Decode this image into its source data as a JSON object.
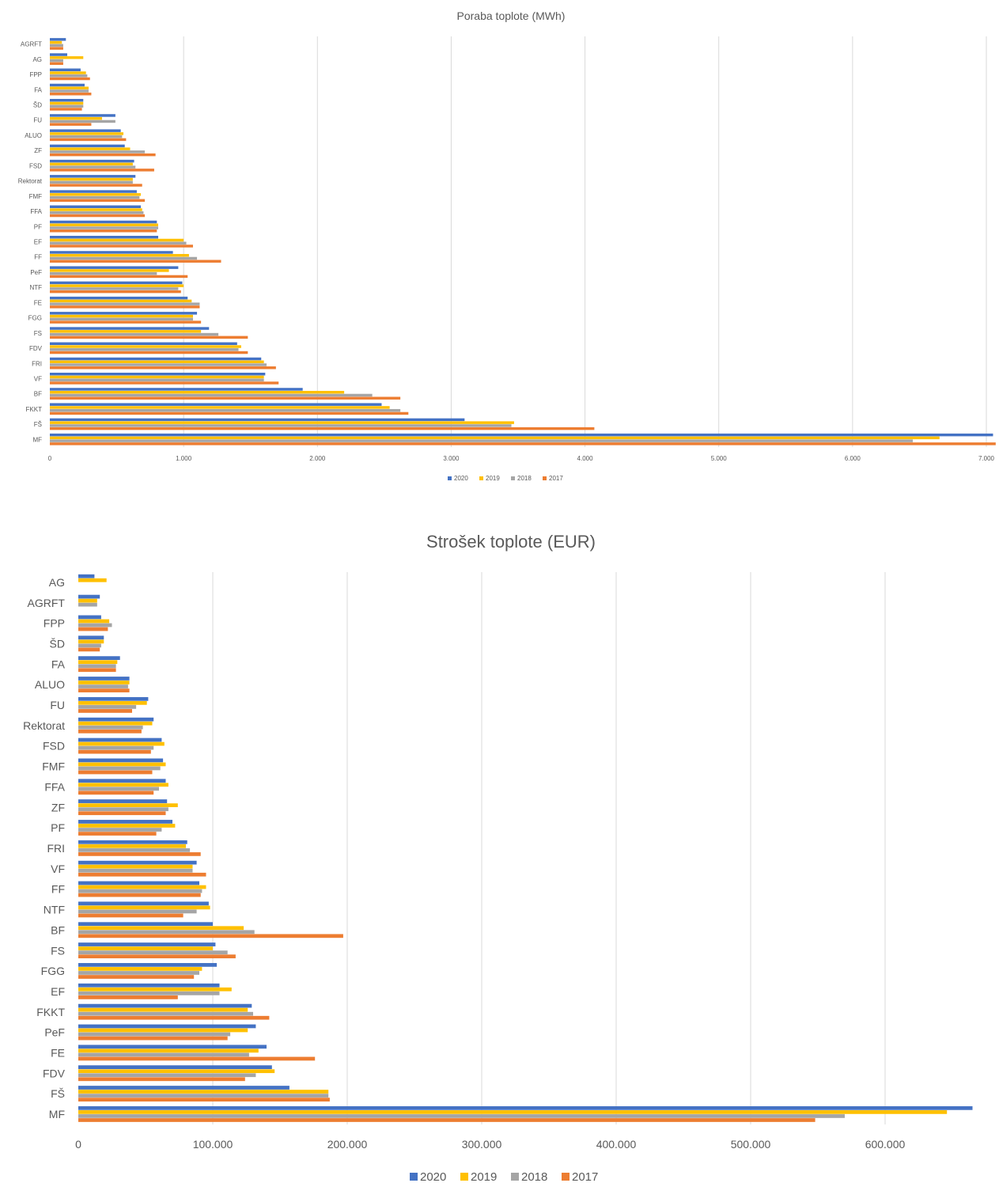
{
  "colors": {
    "2020": "#4472c4",
    "2019": "#ffc000",
    "2018": "#a5a5a5",
    "2017": "#ed7d31",
    "grid": "#d9d9d9"
  },
  "chart_data": [
    {
      "type": "bar",
      "orientation": "horizontal",
      "title": "Poraba toplote (MWh)",
      "categories": [
        "AGRFT",
        "AG",
        "FPP",
        "FA",
        "ŠD",
        "FU",
        "ALUO",
        "ZF",
        "FSD",
        "Rektorat",
        "FMF",
        "FFA",
        "PF",
        "EF",
        "FF",
        "PeF",
        "NTF",
        "FE",
        "FGG",
        "FS",
        "FDV",
        "FRI",
        "VF",
        "BF",
        "FKKT",
        "FŠ",
        "MF"
      ],
      "series": [
        {
          "name": "2020",
          "values": [
            120,
            130,
            230,
            260,
            250,
            490,
            530,
            560,
            630,
            640,
            650,
            680,
            800,
            810,
            920,
            960,
            990,
            1030,
            1100,
            1190,
            1400,
            1580,
            1610,
            1890,
            2480,
            3100,
            7050
          ]
        },
        {
          "name": "2019",
          "values": [
            90,
            250,
            270,
            290,
            250,
            390,
            550,
            600,
            620,
            620,
            680,
            690,
            810,
            1000,
            1040,
            890,
            1000,
            1060,
            1070,
            1130,
            1430,
            1600,
            1600,
            2200,
            2540,
            3470,
            6650
          ]
        },
        {
          "name": "2018",
          "values": [
            100,
            100,
            280,
            290,
            250,
            490,
            540,
            710,
            640,
            620,
            670,
            700,
            810,
            1020,
            1100,
            800,
            960,
            1120,
            1070,
            1260,
            1410,
            1620,
            1600,
            2410,
            2620,
            3450,
            6450
          ]
        },
        {
          "name": "2017",
          "values": [
            100,
            100,
            300,
            310,
            240,
            310,
            570,
            790,
            780,
            690,
            710,
            710,
            800,
            1070,
            1280,
            1030,
            980,
            1120,
            1130,
            1480,
            1480,
            1690,
            1710,
            2620,
            2680,
            4070,
            7070
          ]
        }
      ],
      "xlim": [
        0,
        7000
      ],
      "xticks": [
        "0",
        "1.000",
        "2.000",
        "3.000",
        "4.000",
        "5.000",
        "6.000",
        "7.000"
      ],
      "grid": true,
      "legend": "bottom"
    },
    {
      "type": "bar",
      "orientation": "horizontal",
      "title": "Strošek toplote (EUR)",
      "categories": [
        "AG",
        "AGRFT",
        "FPP",
        "ŠD",
        "FA",
        "ALUO",
        "FU",
        "Rektorat",
        "FSD",
        "FMF",
        "FFA",
        "ZF",
        "PF",
        "FRI",
        "VF",
        "FF",
        "NTF",
        "BF",
        "FS",
        "FGG",
        "EF",
        "FKKT",
        "PeF",
        "FE",
        "FDV",
        "FŠ",
        "MF"
      ],
      "series": [
        {
          "name": "2020",
          "values": [
            12000,
            16000,
            17000,
            19000,
            31000,
            38000,
            52000,
            56000,
            62000,
            63000,
            65000,
            66000,
            70000,
            81000,
            88000,
            90000,
            97000,
            100000,
            102000,
            103000,
            105000,
            129000,
            132000,
            140000,
            144000,
            157000,
            665000
          ]
        },
        {
          "name": "2019",
          "values": [
            21000,
            14000,
            23000,
            19000,
            29000,
            38000,
            51000,
            55000,
            64000,
            65000,
            67000,
            74000,
            72000,
            80000,
            85000,
            95000,
            98000,
            123000,
            100000,
            92000,
            114000,
            126000,
            126000,
            134000,
            146000,
            186000,
            646000
          ]
        },
        {
          "name": "2018",
          "values": [
            0,
            14000,
            25000,
            17000,
            28000,
            37000,
            43000,
            48000,
            56000,
            61000,
            60000,
            67000,
            62000,
            83000,
            85000,
            92000,
            88000,
            131000,
            111000,
            90000,
            105000,
            130000,
            113000,
            127000,
            132000,
            186000,
            570000
          ]
        },
        {
          "name": "2017",
          "values": [
            0,
            0,
            22000,
            16000,
            28000,
            38000,
            40000,
            47000,
            54000,
            55000,
            56000,
            65000,
            58000,
            91000,
            95000,
            91000,
            78000,
            197000,
            117000,
            86000,
            74000,
            142000,
            111000,
            176000,
            124000,
            187000,
            548000
          ]
        }
      ],
      "xlim": [
        0,
        670000
      ],
      "xticks": [
        "0",
        "100.000",
        "200.000",
        "300.000",
        "400.000",
        "500.000",
        "600.000"
      ],
      "grid": true,
      "legend": "bottom"
    }
  ]
}
